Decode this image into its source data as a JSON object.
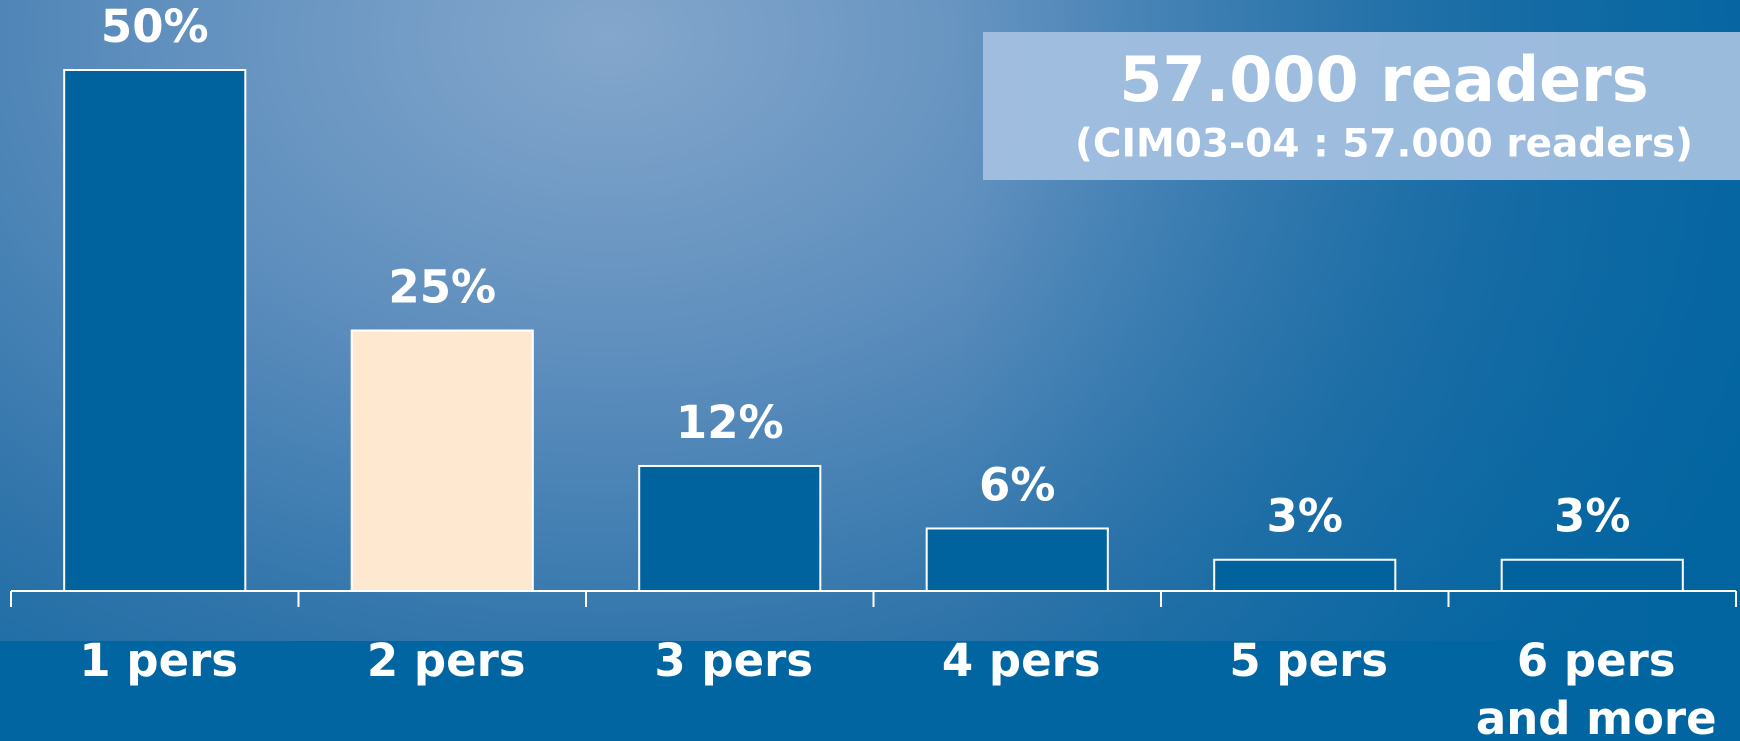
{
  "chart_data": {
    "type": "bar",
    "title": "57.000 readers",
    "subtitle": "(CIM03-04 : 57.000 readers)",
    "categories": [
      "1 pers",
      "2 pers",
      "3 pers",
      "4 pers",
      "5 pers",
      "6 pers\nand more"
    ],
    "values": [
      50,
      25,
      12,
      6,
      3,
      3
    ],
    "value_labels": [
      "50%",
      "25%",
      "12%",
      "6%",
      "3%",
      "3%"
    ],
    "colors": [
      "#00639e",
      "#ffe8d0",
      "#00639e",
      "#00639e",
      "#00639e",
      "#00639e"
    ]
  }
}
